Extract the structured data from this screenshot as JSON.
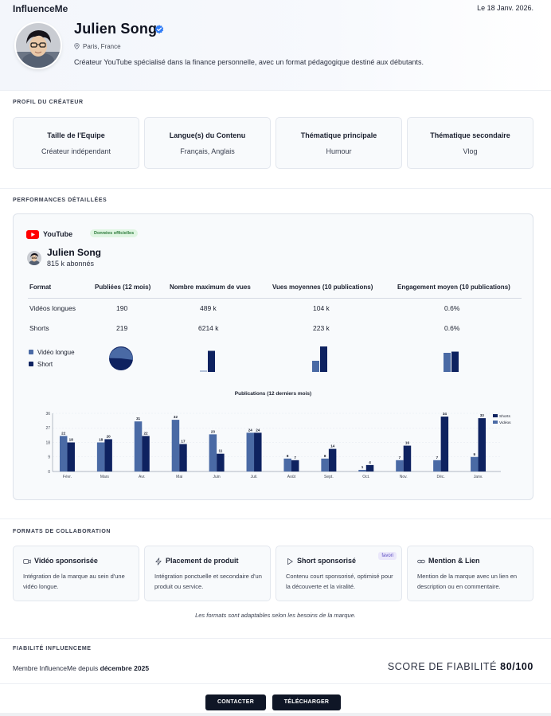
{
  "brand": "InfluenceMe",
  "date": "Le 18 Janv. 2026.",
  "creator": {
    "name": "Julien Song",
    "location": "Paris, France",
    "bio": "Créateur YouTube spécialisé dans la finance personnelle, avec un format pédagogique destiné aux débutants."
  },
  "profile": {
    "title": "PROFIL DU CRÉATEUR",
    "cards": [
      {
        "label": "Taille de l'Equipe",
        "value": "Créateur indépendant"
      },
      {
        "label": "Langue(s) du Contenu",
        "value": "Français, Anglais"
      },
      {
        "label": "Thématique principale",
        "value": "Humour"
      },
      {
        "label": "Thématique secondaire",
        "value": "Vlog"
      }
    ]
  },
  "performance": {
    "title": "PERFORMANCES DÉTAILLÉES",
    "platform": "YouTube",
    "badge": "Données officielles",
    "channel_name": "Julien Song",
    "subscribers": "815 k abonnés",
    "headers": [
      "Format",
      "Publiées (12 mois)",
      "Nombre maximum de vues",
      "Vues moyennes (10 publications)",
      "Engagement moyen (10 publications)"
    ],
    "rows": [
      [
        "Vidéos longues",
        "190",
        "489 k",
        "104 k",
        "0.6%"
      ],
      [
        "Shorts",
        "219",
        "6214 k",
        "223 k",
        "0.6%"
      ]
    ],
    "legend": [
      "Vidéo longue",
      "Short"
    ],
    "colors": {
      "long": "#4a6aa5",
      "short": "#0e2260"
    }
  },
  "chart_data": {
    "type": "bar",
    "title": "Publications (12 derniers mois)",
    "categories": [
      "Févr.",
      "Mars",
      "Avr.",
      "Mai",
      "Juin",
      "Juil.",
      "Août",
      "Sept.",
      "Oct.",
      "Nov.",
      "Déc.",
      "Janv."
    ],
    "series": [
      {
        "name": "Vidéos",
        "values": [
          22,
          18,
          31,
          32,
          23,
          24,
          8,
          8,
          1,
          7,
          7,
          9
        ]
      },
      {
        "name": "Shorts",
        "values": [
          18,
          20,
          22,
          17,
          11,
          24,
          7,
          14,
          4,
          16,
          34,
          33
        ]
      }
    ],
    "y_ticks": [
      "0",
      "9",
      "18",
      "27",
      "36"
    ],
    "ylim": [
      0,
      36
    ],
    "legend_position": "top-right",
    "grid": true
  },
  "collab": {
    "title": "FORMATS DE COLLABORATION",
    "cards": [
      {
        "title": "Vidéo sponsorisée",
        "desc": "Intégration de la marque au sein d'une vidéo longue.",
        "icon": "video-icon"
      },
      {
        "title": "Placement de produit",
        "desc": "Intégration ponctuelle et secondaire d'un produit ou service.",
        "icon": "bolt-icon"
      },
      {
        "title": "Short sponsorisé",
        "desc": "Contenu court sponsorisé, optimisé pour la découverte et la viralité.",
        "icon": "play-icon",
        "badge": "favori"
      },
      {
        "title": "Mention & Lien",
        "desc": "Mention de la marque avec un lien en description ou en commentaire.",
        "icon": "link-icon"
      }
    ],
    "note": "Les formats sont adaptables selon les besoins de la marque."
  },
  "reliability": {
    "title": "FIABILITÉ INFLUENCEME",
    "member_prefix": "Membre InfluenceMe depuis ",
    "member_since": "décembre 2025",
    "score_label": "SCORE DE FIABILITÉ ",
    "score_value": "80/100"
  },
  "actions": {
    "contact": "CONTACTER",
    "download": "TÉLÉCHARGER"
  }
}
